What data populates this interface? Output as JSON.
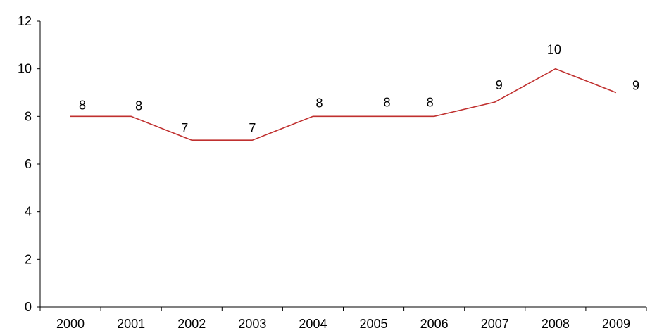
{
  "chart_data": {
    "type": "line",
    "title": "",
    "xlabel": "",
    "ylabel": "",
    "categories": [
      "2000",
      "2001",
      "2002",
      "2003",
      "2004",
      "2005",
      "2006",
      "2007",
      "2008",
      "2009"
    ],
    "series": [
      {
        "values": [
          8,
          8,
          7,
          7,
          8,
          8,
          8,
          8.6,
          10,
          9
        ],
        "data_labels": [
          "8",
          "8",
          "7",
          "7",
          "8",
          "8",
          "8",
          "9",
          "10",
          "9"
        ],
        "color": "#c0302f"
      }
    ],
    "ylim": [
      0,
      12
    ],
    "yticks": [
      "0",
      "2",
      "4",
      "6",
      "8",
      "10",
      "12"
    ],
    "grid": false,
    "legend": "none",
    "axis_color": "#000000"
  }
}
